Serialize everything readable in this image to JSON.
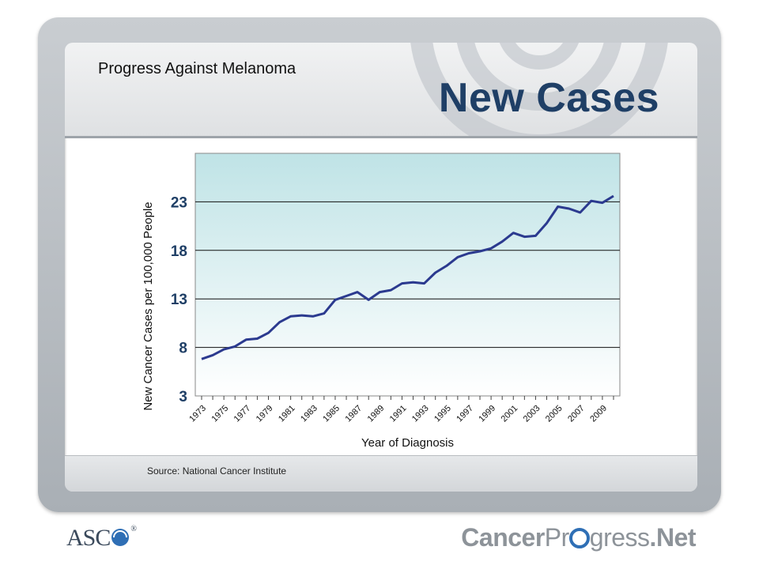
{
  "header": {
    "kicker": "Progress Against Melanoma",
    "title": "New Cases"
  },
  "footer": {
    "source": "Source: National Cancer Institute"
  },
  "logos": {
    "asco": "ASC",
    "asco_mark": "®",
    "cp_left": "Cancer",
    "cp_mid1": "Pr",
    "cp_mid2": "gress",
    "cp_right": ".Net"
  },
  "colors": {
    "line": "#2b3a8f",
    "title": "#1f3f66",
    "plot_top": "#bfe3e6",
    "plot_bottom": "#ffffff"
  },
  "chart_data": {
    "type": "line",
    "xlabel": "Year of Diagnosis",
    "ylabel": "New Cancer Cases per 100,000 People",
    "ylim": [
      3,
      28
    ],
    "xlim": [
      1973,
      2010
    ],
    "yticks": [
      3,
      8,
      13,
      18,
      23
    ],
    "xtick_labels": [
      "1973",
      "1975",
      "1977",
      "1979",
      "1981",
      "1983",
      "1985",
      "1987",
      "1989",
      "1991",
      "1993",
      "1995",
      "1997",
      "1999",
      "2001",
      "2003",
      "2005",
      "2007",
      "2009"
    ],
    "grid": true,
    "series": [
      {
        "x": [
          1973,
          1974,
          1975,
          1976,
          1977,
          1978,
          1979,
          1980,
          1981,
          1982,
          1983,
          1984,
          1985,
          1986,
          1987,
          1988,
          1989,
          1990,
          1991,
          1992,
          1993,
          1994,
          1995,
          1996,
          1997,
          1998,
          1999,
          2000,
          2001,
          2002,
          2003,
          2004,
          2005,
          2006,
          2007,
          2008,
          2009,
          2010
        ],
        "values": [
          6.8,
          7.2,
          7.8,
          8.1,
          8.8,
          8.9,
          9.5,
          10.6,
          11.2,
          11.3,
          11.2,
          11.5,
          12.9,
          13.3,
          13.7,
          12.9,
          13.7,
          13.9,
          14.6,
          14.7,
          14.6,
          15.7,
          16.4,
          17.3,
          17.7,
          17.9,
          18.2,
          18.9,
          19.8,
          19.4,
          19.5,
          20.8,
          22.5,
          22.3,
          21.9,
          23.1,
          22.9,
          23.6
        ]
      }
    ]
  }
}
